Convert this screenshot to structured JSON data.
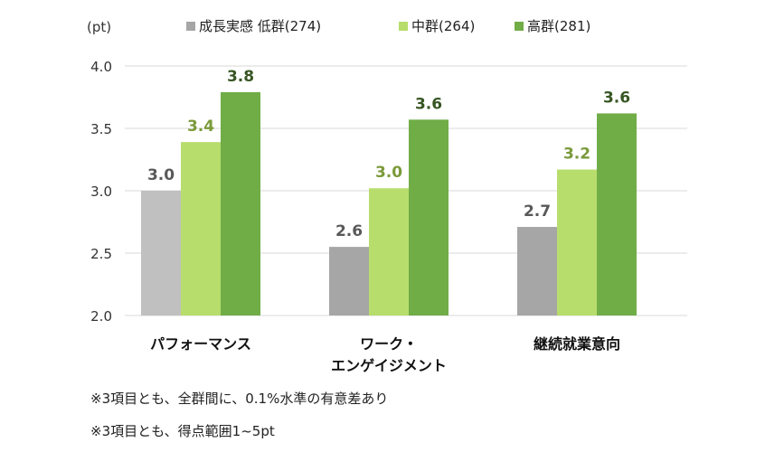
{
  "chart_data": {
    "type": "bar",
    "ylabel": "(pt)",
    "ylim": [
      2.0,
      4.0
    ],
    "yticks": [
      "2.0",
      "2.5",
      "3.0",
      "3.5",
      "4.0"
    ],
    "categories": [
      "パフォーマンス",
      "ワーク・\nエンゲイジメント",
      "継続就業意向"
    ],
    "series": [
      {
        "name": "成長実感 低群(274)",
        "values": [
          3.0,
          2.55,
          2.71
        ],
        "labels": [
          "3.0",
          "2.6",
          "2.7"
        ]
      },
      {
        "name": "中群(264)",
        "values": [
          3.39,
          3.02,
          3.17
        ],
        "labels": [
          "3.4",
          "3.0",
          "3.2"
        ]
      },
      {
        "name": "高群(281)",
        "values": [
          3.79,
          3.57,
          3.62
        ],
        "labels": [
          "3.8",
          "3.6",
          "3.6"
        ]
      }
    ],
    "legend_position": "top",
    "grid": true,
    "colors": {
      "low": [
        "#c0c0c0",
        "#a6a6a6",
        "#a6a6a6"
      ],
      "mid": "#b7dd6c",
      "high": "#70ad47",
      "label_low": "#595959",
      "label_mid": "#7a9a3a",
      "label_high": "#375623"
    }
  },
  "notes": [
    "※3項目とも、全群間に、0.1%水準の有意差あり",
    "※3項目とも、得点範囲1~5pt"
  ]
}
